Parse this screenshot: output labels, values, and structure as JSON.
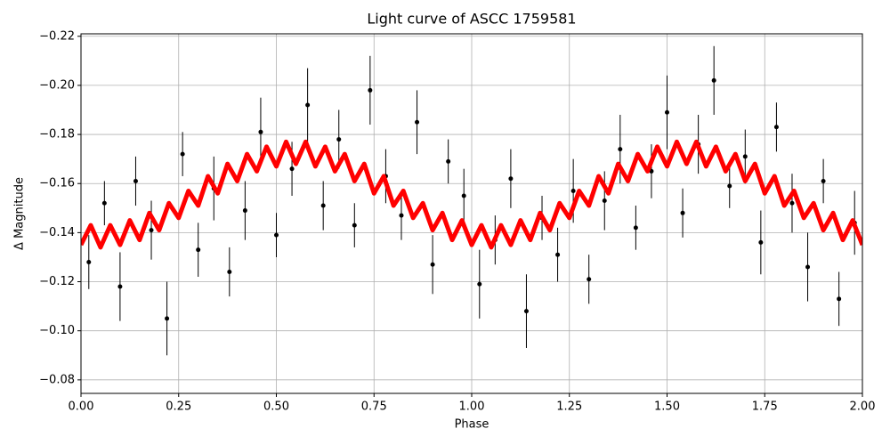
{
  "chart_data": {
    "type": "scatter",
    "title": "Light curve of ASCC 1759581",
    "xlabel": "Phase",
    "ylabel": "Δ Magnitude",
    "xlim": [
      0,
      2
    ],
    "xticks": [
      {
        "value": 0,
        "label": "0.00"
      },
      {
        "value": 0.25,
        "label": "0.25"
      },
      {
        "value": 0.5,
        "label": "0.50"
      },
      {
        "value": 0.75,
        "label": "0.75"
      },
      {
        "value": 1,
        "label": "1.00"
      },
      {
        "value": 1.25,
        "label": "1.25"
      },
      {
        "value": 1.5,
        "label": "1.50"
      },
      {
        "value": 1.75,
        "label": "1.75"
      },
      {
        "value": 2,
        "label": "2.00"
      }
    ],
    "ylim": [
      -0.0745,
      -0.221
    ],
    "yticks": [
      {
        "value": -0.08,
        "label": "−0.08"
      },
      {
        "value": -0.1,
        "label": "−0.10"
      },
      {
        "value": -0.12,
        "label": "−0.12"
      },
      {
        "value": -0.14,
        "label": "−0.14"
      },
      {
        "value": -0.16,
        "label": "−0.16"
      },
      {
        "value": -0.18,
        "label": "−0.18"
      },
      {
        "value": -0.2,
        "label": "−0.20"
      },
      {
        "value": -0.22,
        "label": "−0.22"
      }
    ],
    "grid": true,
    "points": {
      "color": "#000000",
      "x": [
        0.02,
        0.06,
        0.1,
        0.14,
        0.18,
        0.22,
        0.26,
        0.3,
        0.34,
        0.38,
        0.42,
        0.46,
        0.5,
        0.54,
        0.58,
        0.62,
        0.66,
        0.7,
        0.74,
        0.78,
        0.82,
        0.86,
        0.9,
        0.94,
        0.98,
        1.02,
        1.06,
        1.1,
        1.14,
        1.18,
        1.22,
        1.26,
        1.3,
        1.34,
        1.38,
        1.42,
        1.46,
        1.5,
        1.54,
        1.58,
        1.62,
        1.66,
        1.7,
        1.74,
        1.78,
        1.82,
        1.86,
        1.9,
        1.94,
        1.98
      ],
      "y": [
        -0.128,
        -0.152,
        -0.118,
        -0.161,
        -0.141,
        -0.105,
        -0.172,
        -0.133,
        -0.158,
        -0.124,
        -0.149,
        -0.181,
        -0.139,
        -0.166,
        -0.192,
        -0.151,
        -0.178,
        -0.143,
        -0.198,
        -0.163,
        -0.147,
        -0.185,
        -0.127,
        -0.169,
        -0.155,
        -0.119,
        -0.137,
        -0.162,
        -0.108,
        -0.146,
        -0.131,
        -0.157,
        -0.121,
        -0.153,
        -0.174,
        -0.142,
        -0.165,
        -0.189,
        -0.148,
        -0.176,
        -0.202,
        -0.159,
        -0.171,
        -0.136,
        -0.183,
        -0.152,
        -0.126,
        -0.161,
        -0.113,
        -0.144
      ],
      "yerr": [
        0.011,
        0.009,
        0.014,
        0.01,
        0.012,
        0.015,
        0.009,
        0.011,
        0.013,
        0.01,
        0.012,
        0.014,
        0.009,
        0.011,
        0.015,
        0.01,
        0.012,
        0.009,
        0.014,
        0.011,
        0.01,
        0.013,
        0.012,
        0.009,
        0.011,
        0.014,
        0.01,
        0.012,
        0.015,
        0.009,
        0.011,
        0.013,
        0.01,
        0.012,
        0.014,
        0.009,
        0.011,
        0.015,
        0.01,
        0.012,
        0.014,
        0.009,
        0.011,
        0.013,
        0.01,
        0.012,
        0.014,
        0.009,
        0.011,
        0.013
      ]
    },
    "model": {
      "color": "#ff0000",
      "x": [
        0,
        0.025,
        0.05,
        0.075,
        0.1,
        0.125,
        0.15,
        0.175,
        0.2,
        0.225,
        0.25,
        0.275,
        0.3,
        0.325,
        0.35,
        0.375,
        0.4,
        0.425,
        0.45,
        0.475,
        0.5,
        0.525,
        0.55,
        0.575,
        0.6,
        0.625,
        0.65,
        0.675,
        0.7,
        0.725,
        0.75,
        0.775,
        0.8,
        0.825,
        0.85,
        0.875,
        0.9,
        0.925,
        0.95,
        0.975,
        1,
        1.025,
        1.05,
        1.075,
        1.1,
        1.125,
        1.15,
        1.175,
        1.2,
        1.225,
        1.25,
        1.275,
        1.3,
        1.325,
        1.35,
        1.375,
        1.4,
        1.425,
        1.45,
        1.475,
        1.5,
        1.525,
        1.55,
        1.575,
        1.6,
        1.625,
        1.65,
        1.675,
        1.7,
        1.725,
        1.75,
        1.775,
        1.8,
        1.825,
        1.85,
        1.875,
        1.9,
        1.925,
        1.95,
        1.975,
        2
      ],
      "y": [
        -0.135,
        -0.143,
        -0.134,
        -0.143,
        -0.135,
        -0.145,
        -0.137,
        -0.148,
        -0.141,
        -0.152,
        -0.146,
        -0.157,
        -0.151,
        -0.163,
        -0.156,
        -0.168,
        -0.161,
        -0.172,
        -0.165,
        -0.175,
        -0.167,
        -0.177,
        -0.168,
        -0.177,
        -0.167,
        -0.175,
        -0.165,
        -0.172,
        -0.161,
        -0.168,
        -0.156,
        -0.163,
        -0.151,
        -0.157,
        -0.146,
        -0.152,
        -0.141,
        -0.148,
        -0.137,
        -0.145,
        -0.135,
        -0.143,
        -0.134,
        -0.143,
        -0.135,
        -0.145,
        -0.137,
        -0.148,
        -0.141,
        -0.152,
        -0.146,
        -0.157,
        -0.151,
        -0.163,
        -0.156,
        -0.168,
        -0.161,
        -0.172,
        -0.165,
        -0.175,
        -0.167,
        -0.177,
        -0.168,
        -0.177,
        -0.167,
        -0.175,
        -0.165,
        -0.172,
        -0.161,
        -0.168,
        -0.156,
        -0.163,
        -0.151,
        -0.157,
        -0.146,
        -0.152,
        -0.141,
        -0.148,
        -0.137,
        -0.145,
        -0.135
      ]
    }
  }
}
